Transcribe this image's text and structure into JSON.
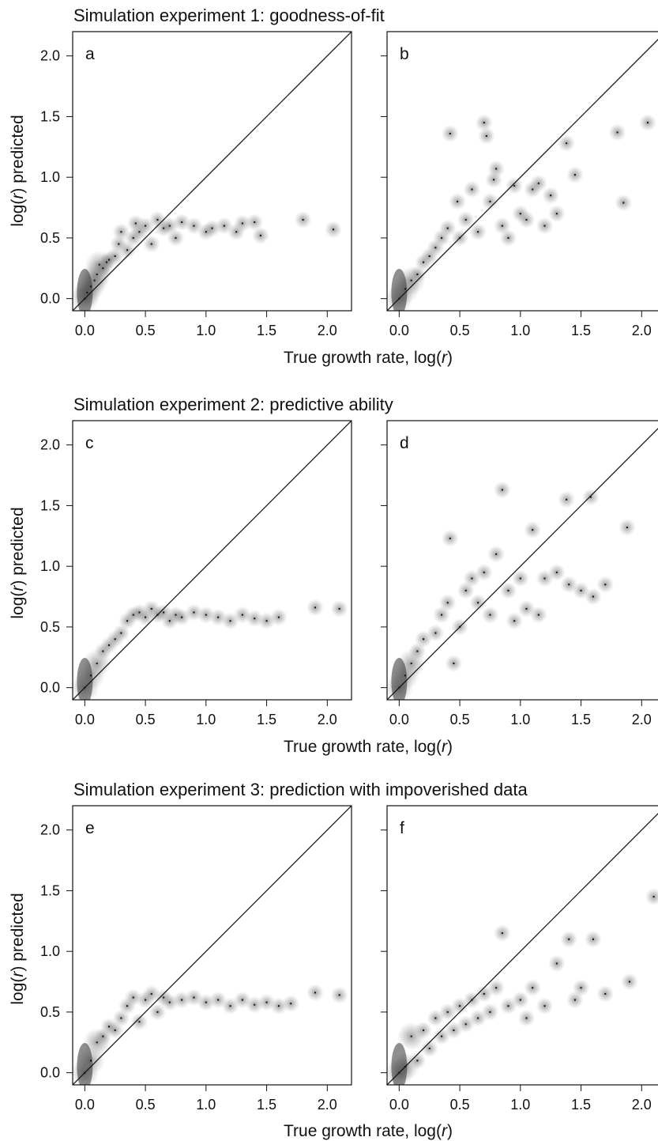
{
  "figure": {
    "rows": [
      {
        "title": "Simulation experiment 1: goodness-of-fit",
        "panels": [
          "a",
          "b"
        ]
      },
      {
        "title": "Simulation experiment 2: predictive ability",
        "panels": [
          "c",
          "d"
        ]
      },
      {
        "title": "Simulation experiment 3: prediction with impoverished data",
        "panels": [
          "e",
          "f"
        ]
      }
    ],
    "xlabel": {
      "prefix": "True growth rate, log(",
      "italic": "r",
      "suffix": ")"
    },
    "ylabel": {
      "prefix": "log(",
      "italic": "r",
      "suffix": ") predicted"
    },
    "x_ticks": [
      "0.0",
      "0.5",
      "1.0",
      "1.5",
      "2.0"
    ],
    "y_ticks": [
      "0.0",
      "0.5",
      "1.0",
      "1.5",
      "2.0"
    ]
  },
  "chart_data": [
    {
      "panel": "a",
      "type": "scatter",
      "xlim": [
        -0.1,
        2.2
      ],
      "ylim": [
        -0.1,
        2.2
      ],
      "reference_line": "y = x",
      "points": [
        [
          0.0,
          0.0
        ],
        [
          0.02,
          0.05
        ],
        [
          0.05,
          0.1
        ],
        [
          0.08,
          0.15
        ],
        [
          0.1,
          0.2
        ],
        [
          0.12,
          0.28
        ],
        [
          0.15,
          0.25
        ],
        [
          0.18,
          0.3
        ],
        [
          0.2,
          0.32
        ],
        [
          0.25,
          0.35
        ],
        [
          0.28,
          0.45
        ],
        [
          0.3,
          0.55
        ],
        [
          0.35,
          0.4
        ],
        [
          0.4,
          0.5
        ],
        [
          0.42,
          0.62
        ],
        [
          0.45,
          0.55
        ],
        [
          0.5,
          0.6
        ],
        [
          0.55,
          0.45
        ],
        [
          0.6,
          0.65
        ],
        [
          0.65,
          0.58
        ],
        [
          0.7,
          0.6
        ],
        [
          0.75,
          0.5
        ],
        [
          0.8,
          0.63
        ],
        [
          0.9,
          0.6
        ],
        [
          1.0,
          0.55
        ],
        [
          1.05,
          0.58
        ],
        [
          1.15,
          0.6
        ],
        [
          1.25,
          0.55
        ],
        [
          1.3,
          0.62
        ],
        [
          1.4,
          0.63
        ],
        [
          1.45,
          0.52
        ],
        [
          1.8,
          0.65
        ],
        [
          2.05,
          0.57
        ]
      ]
    },
    {
      "panel": "b",
      "type": "scatter",
      "xlim": [
        -0.1,
        2.2
      ],
      "ylim": [
        -0.1,
        2.2
      ],
      "reference_line": "y = x",
      "points": [
        [
          0.0,
          0.0
        ],
        [
          0.05,
          0.08
        ],
        [
          0.1,
          0.15
        ],
        [
          0.15,
          0.2
        ],
        [
          0.2,
          0.3
        ],
        [
          0.25,
          0.35
        ],
        [
          0.3,
          0.42
        ],
        [
          0.35,
          0.5
        ],
        [
          0.4,
          0.58
        ],
        [
          0.42,
          1.36
        ],
        [
          0.48,
          0.8
        ],
        [
          0.5,
          0.5
        ],
        [
          0.55,
          0.65
        ],
        [
          0.6,
          0.9
        ],
        [
          0.65,
          0.55
        ],
        [
          0.7,
          1.45
        ],
        [
          0.72,
          1.34
        ],
        [
          0.75,
          0.8
        ],
        [
          0.78,
          0.98
        ],
        [
          0.8,
          1.07
        ],
        [
          0.85,
          0.6
        ],
        [
          0.9,
          0.5
        ],
        [
          0.95,
          0.93
        ],
        [
          1.0,
          0.7
        ],
        [
          1.05,
          0.65
        ],
        [
          1.1,
          0.9
        ],
        [
          1.15,
          0.95
        ],
        [
          1.2,
          0.6
        ],
        [
          1.25,
          0.85
        ],
        [
          1.3,
          0.7
        ],
        [
          1.38,
          1.28
        ],
        [
          1.45,
          1.02
        ],
        [
          1.8,
          1.37
        ],
        [
          1.85,
          0.79
        ],
        [
          2.05,
          1.45
        ]
      ]
    },
    {
      "panel": "c",
      "type": "scatter",
      "xlim": [
        -0.1,
        2.2
      ],
      "ylim": [
        -0.1,
        2.2
      ],
      "reference_line": "y = x",
      "points": [
        [
          0.0,
          0.0
        ],
        [
          0.05,
          0.1
        ],
        [
          0.1,
          0.2
        ],
        [
          0.15,
          0.3
        ],
        [
          0.2,
          0.35
        ],
        [
          0.25,
          0.4
        ],
        [
          0.3,
          0.45
        ],
        [
          0.35,
          0.55
        ],
        [
          0.4,
          0.6
        ],
        [
          0.45,
          0.62
        ],
        [
          0.5,
          0.58
        ],
        [
          0.55,
          0.65
        ],
        [
          0.6,
          0.6
        ],
        [
          0.65,
          0.62
        ],
        [
          0.7,
          0.55
        ],
        [
          0.75,
          0.6
        ],
        [
          0.8,
          0.58
        ],
        [
          0.9,
          0.62
        ],
        [
          1.0,
          0.6
        ],
        [
          1.1,
          0.58
        ],
        [
          1.2,
          0.55
        ],
        [
          1.3,
          0.6
        ],
        [
          1.4,
          0.57
        ],
        [
          1.5,
          0.55
        ],
        [
          1.6,
          0.58
        ],
        [
          1.9,
          0.66
        ],
        [
          2.1,
          0.65
        ]
      ]
    },
    {
      "panel": "d",
      "type": "scatter",
      "xlim": [
        -0.1,
        2.2
      ],
      "ylim": [
        -0.1,
        2.2
      ],
      "reference_line": "y = x",
      "points": [
        [
          0.0,
          0.0
        ],
        [
          0.05,
          0.1
        ],
        [
          0.1,
          0.2
        ],
        [
          0.15,
          0.3
        ],
        [
          0.2,
          0.4
        ],
        [
          0.3,
          0.45
        ],
        [
          0.35,
          0.6
        ],
        [
          0.4,
          0.7
        ],
        [
          0.42,
          1.23
        ],
        [
          0.45,
          0.2
        ],
        [
          0.5,
          0.5
        ],
        [
          0.55,
          0.8
        ],
        [
          0.6,
          0.9
        ],
        [
          0.65,
          0.7
        ],
        [
          0.7,
          0.95
        ],
        [
          0.75,
          0.6
        ],
        [
          0.8,
          1.1
        ],
        [
          0.85,
          1.63
        ],
        [
          0.9,
          0.8
        ],
        [
          0.95,
          0.55
        ],
        [
          1.0,
          0.9
        ],
        [
          1.05,
          0.65
        ],
        [
          1.1,
          1.3
        ],
        [
          1.15,
          0.6
        ],
        [
          1.2,
          0.9
        ],
        [
          1.3,
          0.95
        ],
        [
          1.38,
          1.55
        ],
        [
          1.4,
          0.85
        ],
        [
          1.5,
          0.8
        ],
        [
          1.58,
          1.57
        ],
        [
          1.6,
          0.75
        ],
        [
          1.7,
          0.85
        ],
        [
          1.88,
          1.32
        ]
      ]
    },
    {
      "panel": "e",
      "type": "scatter",
      "xlim": [
        -0.1,
        2.2
      ],
      "ylim": [
        -0.1,
        2.2
      ],
      "reference_line": "y = x",
      "points": [
        [
          0.0,
          0.0
        ],
        [
          0.05,
          0.1
        ],
        [
          0.1,
          0.25
        ],
        [
          0.15,
          0.3
        ],
        [
          0.2,
          0.38
        ],
        [
          0.25,
          0.35
        ],
        [
          0.3,
          0.45
        ],
        [
          0.35,
          0.55
        ],
        [
          0.4,
          0.62
        ],
        [
          0.45,
          0.42
        ],
        [
          0.5,
          0.6
        ],
        [
          0.55,
          0.65
        ],
        [
          0.6,
          0.5
        ],
        [
          0.65,
          0.62
        ],
        [
          0.7,
          0.58
        ],
        [
          0.8,
          0.6
        ],
        [
          0.9,
          0.62
        ],
        [
          1.0,
          0.58
        ],
        [
          1.1,
          0.6
        ],
        [
          1.2,
          0.55
        ],
        [
          1.3,
          0.6
        ],
        [
          1.4,
          0.56
        ],
        [
          1.5,
          0.58
        ],
        [
          1.6,
          0.55
        ],
        [
          1.7,
          0.57
        ],
        [
          1.9,
          0.66
        ],
        [
          2.1,
          0.64
        ]
      ]
    },
    {
      "panel": "f",
      "type": "scatter",
      "xlim": [
        -0.1,
        2.2
      ],
      "ylim": [
        -0.1,
        2.2
      ],
      "reference_line": "y = x",
      "points": [
        [
          0.0,
          0.0
        ],
        [
          0.05,
          0.05
        ],
        [
          0.1,
          0.3
        ],
        [
          0.15,
          0.1
        ],
        [
          0.2,
          0.35
        ],
        [
          0.25,
          0.2
        ],
        [
          0.3,
          0.45
        ],
        [
          0.35,
          0.3
        ],
        [
          0.4,
          0.5
        ],
        [
          0.45,
          0.35
        ],
        [
          0.5,
          0.55
        ],
        [
          0.55,
          0.4
        ],
        [
          0.6,
          0.6
        ],
        [
          0.65,
          0.45
        ],
        [
          0.7,
          0.65
        ],
        [
          0.75,
          0.5
        ],
        [
          0.8,
          0.7
        ],
        [
          0.85,
          1.15
        ],
        [
          0.9,
          0.55
        ],
        [
          1.0,
          0.6
        ],
        [
          1.05,
          0.45
        ],
        [
          1.1,
          0.7
        ],
        [
          1.2,
          0.55
        ],
        [
          1.3,
          0.9
        ],
        [
          1.4,
          1.1
        ],
        [
          1.45,
          0.6
        ],
        [
          1.5,
          0.7
        ],
        [
          1.6,
          1.1
        ],
        [
          1.7,
          0.65
        ],
        [
          1.9,
          0.75
        ],
        [
          2.1,
          1.45
        ]
      ]
    }
  ]
}
